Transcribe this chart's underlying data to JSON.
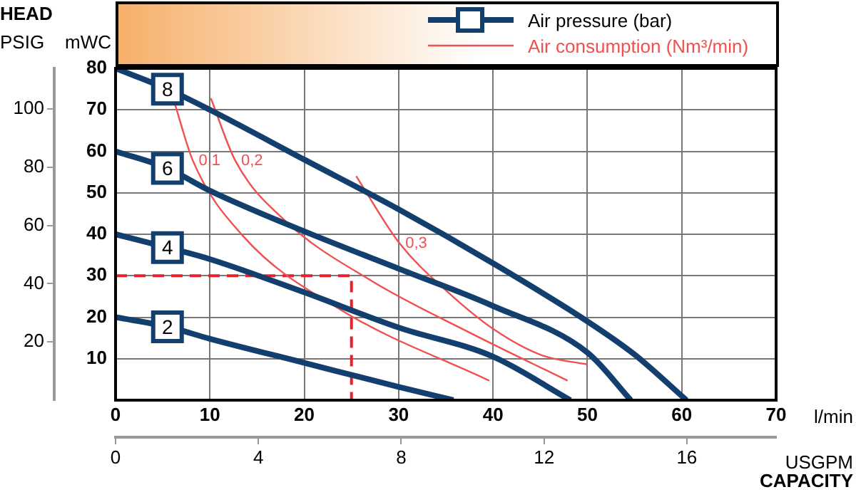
{
  "chart_data": {
    "type": "line",
    "xlabel": "l/min",
    "x2label": "USGPM",
    "ylabel": "mWC",
    "y2label": "PSIG",
    "annotations": [
      "HEAD",
      "CAPACITY",
      "Air pressure (bar)",
      "Air consumption (Nm³/min)"
    ],
    "xlim": [
      0,
      70
    ],
    "xticks": [
      0,
      10,
      20,
      30,
      40,
      50,
      60,
      70
    ],
    "x2lim": [
      0,
      18.5
    ],
    "x2ticks": [
      0,
      4,
      8,
      12,
      16
    ],
    "ylim": [
      0,
      80
    ],
    "yticks": [
      10,
      20,
      30,
      40,
      50,
      60,
      70,
      80
    ],
    "y2lim": [
      0,
      114
    ],
    "y2ticks": [
      20,
      40,
      60,
      80,
      100
    ],
    "grid": true,
    "series": [
      {
        "name": "8",
        "color": "#123f6d",
        "x": [
          0,
          5.5,
          10,
          20,
          30,
          40,
          50,
          55,
          60.5
        ],
        "values": [
          80,
          75,
          70,
          58,
          46,
          33,
          19,
          11,
          0
        ]
      },
      {
        "name": "6",
        "color": "#123f6d",
        "x": [
          0,
          5.5,
          10,
          20,
          30,
          40,
          50,
          54.6
        ],
        "values": [
          60,
          55.9,
          50.5,
          40.7,
          31.7,
          22.7,
          11.5,
          0
        ]
      },
      {
        "name": "4",
        "color": "#123f6d",
        "x": [
          0,
          5.5,
          10,
          20,
          30,
          40,
          48.2
        ],
        "values": [
          40,
          36.8,
          34,
          26,
          17.5,
          10.5,
          0
        ]
      },
      {
        "name": "2",
        "color": "#123f6d",
        "x": [
          0,
          5.5,
          10,
          20,
          30,
          35.8
        ],
        "values": [
          20,
          17.7,
          14.8,
          9,
          3.2,
          0
        ]
      },
      {
        "name": "0,1",
        "color": "#f05050",
        "x": [
          6.2,
          8.2,
          13.5,
          24,
          39.6
        ],
        "values": [
          72.1,
          57.7,
          39.6,
          21.6,
          4.7
        ]
      },
      {
        "name": "0,2",
        "color": "#f05050",
        "x": [
          10.1,
          12.7,
          18,
          27.1,
          37.6,
          47.9
        ],
        "values": [
          72.8,
          57.7,
          43.2,
          28.8,
          16.2,
          4.7
        ]
      },
      {
        "name": "0,3",
        "color": "#f05050",
        "x": [
          25.5,
          30.1,
          35.1,
          40.2,
          45.2,
          50
        ],
        "values": [
          54,
          37.8,
          26.3,
          16.9,
          10.8,
          8.6
        ]
      },
      {
        "color": "#e8202a",
        "line_style": "dashed",
        "x": [
          0,
          25,
          25
        ],
        "values": [
          30,
          30,
          0
        ]
      }
    ]
  }
}
